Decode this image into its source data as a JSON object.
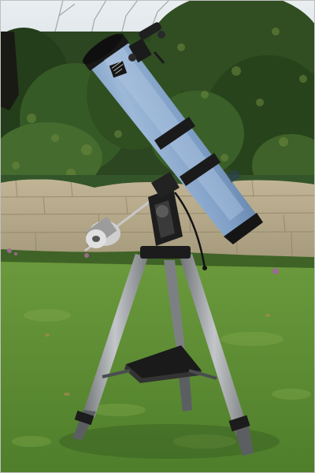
{
  "image": {
    "subject": "newtonian-reflector-telescope-on-equatorial-mount",
    "colors": {
      "sky": "#dfe6ea",
      "foliage_dark": "#1f3617",
      "foliage_mid": "#3b5c26",
      "foliage_light": "#6e8a3e",
      "wall": "#b9ab8c",
      "wall_shadow": "#8f8368",
      "grass": "#5f8f35",
      "grass_light": "#86ad4f",
      "tube": "#7f9fc6",
      "tube_highlight": "#a9c2df",
      "tube_shadow": "#4d6b92",
      "black_parts": "#161616",
      "tripod_legs": "#9ea1a4",
      "tripod_dark": "#5c5f62",
      "counterweight": "#c9c9c9"
    }
  }
}
